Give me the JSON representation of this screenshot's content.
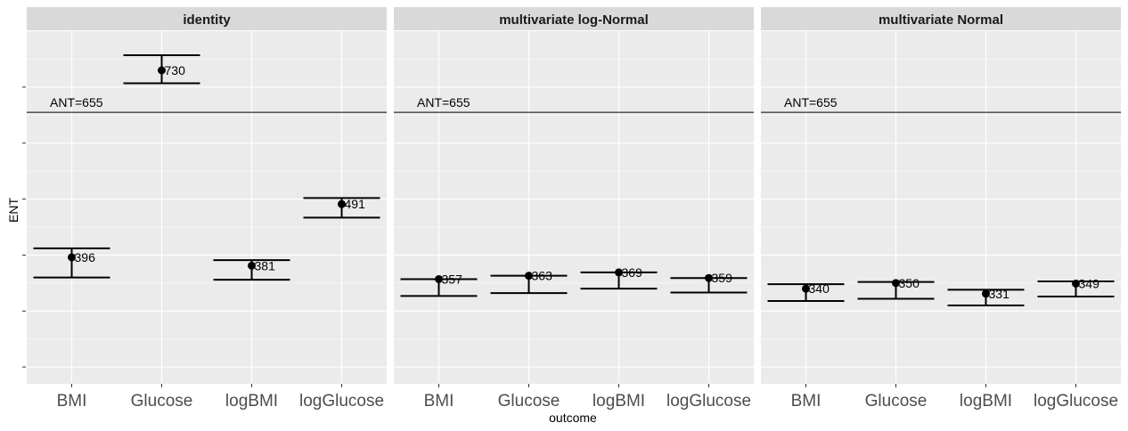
{
  "chart_data": {
    "type": "errorbar",
    "xlabel": "outcome",
    "ylabel": "ENT",
    "categories": [
      "BMI",
      "Glucose",
      "logBMI",
      "logGlucose"
    ],
    "ylim": [
      170,
      800
    ],
    "yticks": [
      200,
      300,
      400,
      500,
      600,
      700
    ],
    "reference": {
      "value": 655,
      "label": "ANT=655"
    },
    "panels": [
      {
        "name": "identity",
        "points": [
          {
            "category": "BMI",
            "value": 396,
            "lower": 360,
            "upper": 412,
            "label": "396"
          },
          {
            "category": "Glucose",
            "value": 730,
            "lower": 707,
            "upper": 757,
            "label": "730"
          },
          {
            "category": "logBMI",
            "value": 381,
            "lower": 356,
            "upper": 391,
            "label": "381"
          },
          {
            "category": "logGlucose",
            "value": 491,
            "lower": 467,
            "upper": 502,
            "label": "491"
          }
        ]
      },
      {
        "name": "multivariate log-Normal",
        "points": [
          {
            "category": "BMI",
            "value": 357,
            "lower": 327,
            "upper": 357,
            "label": "357"
          },
          {
            "category": "Glucose",
            "value": 363,
            "lower": 332,
            "upper": 363,
            "label": "363"
          },
          {
            "category": "logBMI",
            "value": 369,
            "lower": 340,
            "upper": 369,
            "label": "369"
          },
          {
            "category": "logGlucose",
            "value": 359,
            "lower": 333,
            "upper": 359,
            "label": "359"
          }
        ]
      },
      {
        "name": "multivariate Normal",
        "points": [
          {
            "category": "BMI",
            "value": 340,
            "lower": 318,
            "upper": 348,
            "label": "340"
          },
          {
            "category": "Glucose",
            "value": 350,
            "lower": 322,
            "upper": 352,
            "label": "350"
          },
          {
            "category": "logBMI",
            "value": 331,
            "lower": 310,
            "upper": 338,
            "label": "331"
          },
          {
            "category": "logGlucose",
            "value": 349,
            "lower": 326,
            "upper": 353,
            "label": "349"
          }
        ]
      }
    ]
  }
}
